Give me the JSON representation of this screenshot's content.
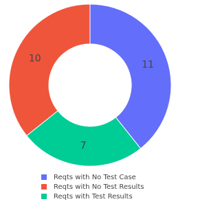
{
  "chart_data": {
    "type": "donut",
    "categories": [
      "Reqts with No Test Case",
      "Reqts with No Test Results",
      "Reqts with Test Results"
    ],
    "values": [
      11,
      10,
      7
    ],
    "colors": [
      "#636efa",
      "#ef553b",
      "#00cc96"
    ],
    "legend": "bottom"
  }
}
